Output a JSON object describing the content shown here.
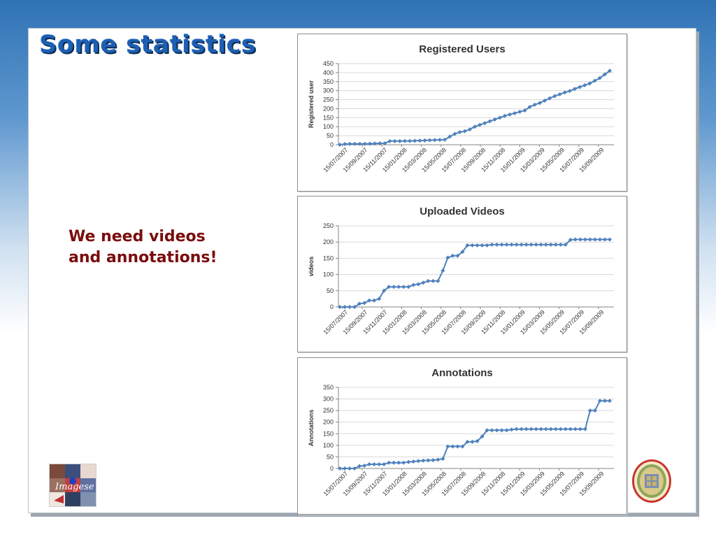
{
  "slide": {
    "title": "Some statistics",
    "callout_lines": [
      "We need videos",
      "and annotations!"
    ],
    "left_logo": {
      "icon": "imagese-logo-icon",
      "text": "Imagese"
    },
    "right_logo": {
      "icon": "university-seal-icon"
    }
  },
  "colors": {
    "series": "#4f81bd",
    "grid": "#d9d9d9",
    "axis": "#868686",
    "title": "#1d5fb2",
    "callout": "#7b0c0c"
  },
  "chart_data": [
    {
      "type": "line",
      "title": "Registered Users",
      "xlabel": "",
      "ylabel": "Registered user",
      "ylim": [
        0,
        450
      ],
      "yticks": [
        0,
        50,
        100,
        150,
        200,
        250,
        300,
        350,
        400,
        450
      ],
      "xtick_labels": [
        "15/07/2007",
        "15/09/2007",
        "15/11/2007",
        "15/01/2008",
        "15/03/2008",
        "15/05/2008",
        "15/07/2008",
        "15/09/2008",
        "15/11/2008",
        "15/01/2009",
        "15/03/2009",
        "15/05/2009",
        "15/07/2009",
        "15/09/2009"
      ],
      "grid": true,
      "series": [
        {
          "values": [
            0,
            4,
            5,
            5,
            5,
            5,
            6,
            7,
            8,
            8,
            20,
            20,
            20,
            21,
            21,
            22,
            23,
            24,
            25,
            26,
            27,
            28,
            45,
            60,
            70,
            75,
            85,
            100,
            110,
            120,
            130,
            140,
            150,
            160,
            168,
            175,
            183,
            190,
            210,
            222,
            232,
            245,
            258,
            270,
            280,
            290,
            298,
            310,
            320,
            330,
            340,
            355,
            370,
            390,
            410
          ]
        }
      ]
    },
    {
      "type": "line",
      "title": "Uploaded Videos",
      "xlabel": "",
      "ylabel": "videos",
      "ylim": [
        0,
        250
      ],
      "yticks": [
        0,
        50,
        100,
        150,
        200,
        250
      ],
      "xtick_labels": [
        "15/07/2007",
        "15/09/2007",
        "15/11/2007",
        "15/01/2008",
        "15/03/2008",
        "15/05/2008",
        "15/07/2008",
        "15/09/2008",
        "15/11/2008",
        "15/01/2009",
        "15/03/2009",
        "15/05/2009",
        "15/07/2009",
        "15/09/2009"
      ],
      "grid": true,
      "series": [
        {
          "values": [
            0,
            0,
            0,
            0,
            10,
            12,
            20,
            20,
            25,
            50,
            62,
            62,
            62,
            62,
            62,
            68,
            70,
            75,
            80,
            80,
            80,
            112,
            152,
            158,
            158,
            170,
            190,
            190,
            190,
            190,
            190,
            192,
            192,
            192,
            192,
            192,
            192,
            192,
            192,
            192,
            192,
            192,
            192,
            192,
            192,
            192,
            192,
            207,
            208,
            208,
            208,
            208,
            208,
            208,
            208,
            208
          ]
        }
      ]
    },
    {
      "type": "line",
      "title": "Annotations",
      "xlabel": "",
      "ylabel": "Annotations",
      "ylim": [
        0,
        350
      ],
      "yticks": [
        0,
        50,
        100,
        150,
        200,
        250,
        300,
        350
      ],
      "xtick_labels": [
        "15/07/2007",
        "15/09/2007",
        "15/11/2007",
        "15/01/2008",
        "15/03/2008",
        "15/05/2008",
        "15/07/2008",
        "15/09/2008",
        "15/11/2008",
        "15/01/2009",
        "15/03/2009",
        "15/05/2009",
        "15/07/2009",
        "15/09/2009"
      ],
      "grid": true,
      "series": [
        {
          "values": [
            0,
            0,
            0,
            0,
            10,
            12,
            18,
            18,
            18,
            18,
            25,
            25,
            25,
            25,
            28,
            30,
            32,
            34,
            35,
            36,
            38,
            42,
            95,
            95,
            95,
            95,
            115,
            115,
            118,
            138,
            165,
            165,
            165,
            165,
            165,
            168,
            170,
            170,
            170,
            170,
            170,
            170,
            170,
            170,
            170,
            170,
            170,
            170,
            170,
            170,
            170,
            250,
            250,
            292,
            292,
            292
          ]
        }
      ]
    }
  ]
}
